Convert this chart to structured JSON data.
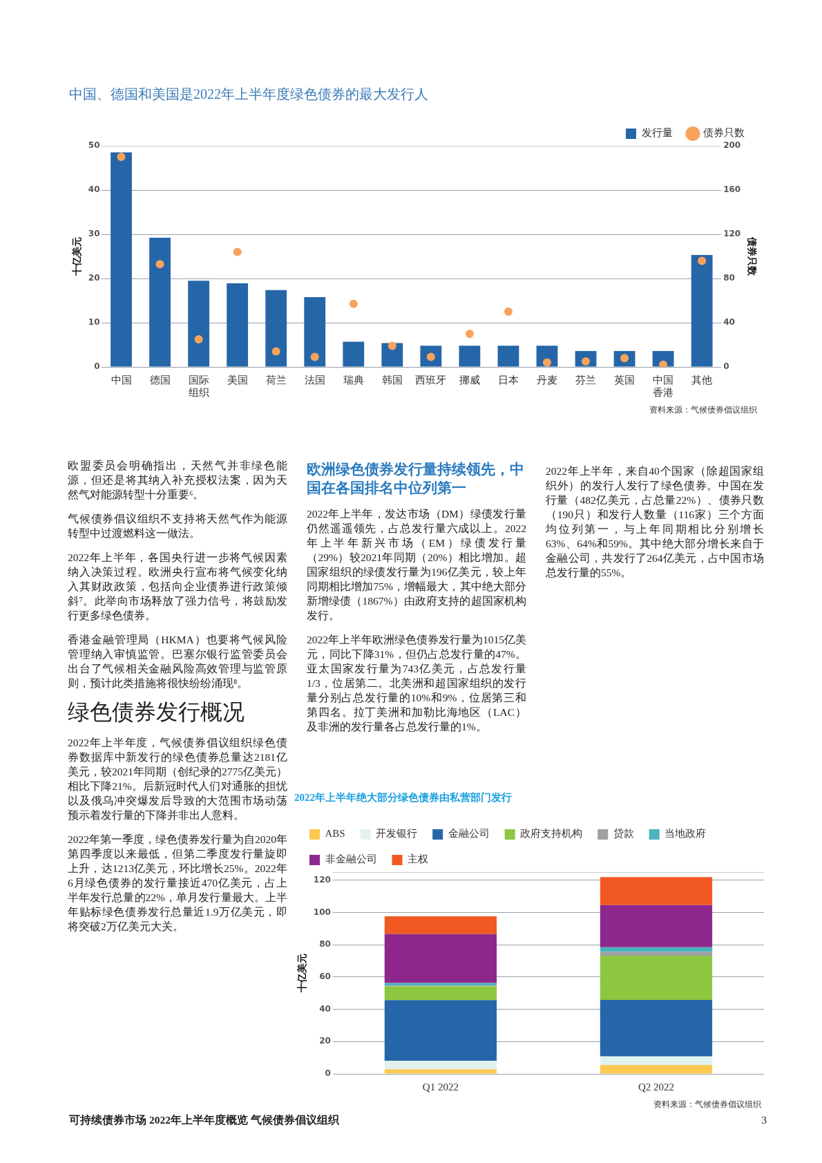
{
  "chart_data": [
    {
      "type": "bar",
      "title": "中国、德国和美国是2022年上半年度绿色债券的最大发行人",
      "ylabel": "十亿美元",
      "y2label": "债券只数",
      "categories": [
        "中国",
        "德国",
        "国际组织",
        "美国",
        "荷兰",
        "法国",
        "瑞典",
        "韩国",
        "西班牙",
        "挪威",
        "日本",
        "丹麦",
        "芬兰",
        "英国",
        "中国香港",
        "其他"
      ],
      "series": [
        {
          "name": "发行量",
          "color": "#2566a8",
          "values": [
            48.5,
            29.2,
            19.5,
            18.9,
            17.4,
            15.8,
            5.7,
            5.4,
            4.8,
            4.8,
            4.8,
            4.8,
            3.6,
            3.6,
            3.6,
            25.3
          ]
        },
        {
          "type": "scatter",
          "axis": "y2",
          "name": "债券只数",
          "color": "#f7a35c",
          "values": [
            190,
            93,
            25,
            104,
            14,
            9,
            57,
            19,
            9,
            30,
            50,
            4,
            5,
            8,
            2,
            96
          ]
        }
      ],
      "ylim": [
        0,
        50
      ],
      "yticks": [
        0,
        10,
        20,
        30,
        40,
        50
      ],
      "y2lim": [
        0,
        200
      ],
      "y2ticks": [
        0,
        40,
        80,
        120,
        160,
        200
      ],
      "grid": "y",
      "legend": "top right",
      "marker": "circle",
      "annotations": [
        "资料来源：气候债券倡议组织"
      ]
    },
    {
      "type": "other",
      "annotations": [
        "欧盟委员会明确指出，天然气并非绿色能源，但还是将其纳入补充授权法案，因为天然气对能源转型十分重要⁶。",
        "气候债券倡议组织不支持将天然气作为能源转型中过渡燃料这一做法。",
        "2022年上半年，各国央行进一步将气候因素纳入决策过程。欧洲央行宣布将气候变化纳入其财政政策，包括向企业债券进行政策倾斜⁷。此举向市场释放了强力信号，将鼓励发行更多绿色债券。",
        "香港金融管理局（HKMA）也要将气候风险管理纳入审慎监管。巴塞尔银行监管委员会出台了气候相关金融风险高效管理与监管原则，预计此类措施将很快纷纷涌现⁸。"
      ]
    },
    {
      "type": "other",
      "title": "绿色债券发行概况",
      "annotations": [
        "2022年上半年度，气候债券倡议组织绿色债券数据库中新发行的绿色债券总量达2181亿美元，较2021年同期（创纪录的2775亿美元）相比下降21%。后新冠时代人们对通胀的担忧以及俄乌冲突爆发后导致的大范围市场动荡预示着发行量的下降并非出人意料。",
        "2022年第一季度，绿色债券发行量为自2020年第四季度以来最低，但第二季度发行量旋即上升，达1213亿美元，环比增长25%。2022年6月绿色债券的发行量接近470亿美元，占上半年发行总量的22%，单月发行量最大。上半年贴标绿色债券发行总量近1.9万亿美元，即将突破2万亿美元大关。"
      ]
    },
    {
      "type": "other",
      "title": "欧洲绿色债券发行量持续领先，中国在各国排名中位列第一",
      "annotations": [
        "2022年上半年，发达市场（DM）绿债发行量仍然遥遥领先，占总发行量六成以上。2022年上半年新兴市场（EM）绿债发行量（29%）较2021年同期（20%）相比增加。超国家组织的绿债发行量为196亿美元，较上年同期相比增加75%，增幅最大，其中绝大部分新增绿债（1867%）由政府支持的超国家机构发行。",
        "2022年上半年欧洲绿色债券发行量为1015亿美元，同比下降31%，但仍占总发行量的47%。亚太国家发行量为743亿美元，占总发行量1/3，位居第二。北美洲和超国家组织的发行量分别占总发行量的10%和9%，位居第三和第四名。拉丁美洲和加勒比海地区（LAC）及非洲的发行量各占总发行量的1%。"
      ]
    },
    {
      "type": "other",
      "annotations": [
        "2022年上半年，来自40个国家（除超国家组织外）的发行人发行了绿色债券。中国在发行量（482亿美元，占总量22%）、债券只数（190只）和发行人数量（116家）三个方面均位列第一，与上年同期相比分别增长63%、64%和59%。其中绝大部分增长来自于金融公司，共发行了264亿美元，占中国市场总发行量的55%。"
      ]
    },
    {
      "type": "bar",
      "stacked": true,
      "title": "2022年上半年绝大部分绿色债券由私营部门发行",
      "ylabel": "十亿美元",
      "categories": [
        "Q1 2022",
        "Q2 2022"
      ],
      "series": [
        {
          "name": "ABS",
          "color": "#fdc94e",
          "values": [
            2.8,
            5.5
          ]
        },
        {
          "name": "开发银行",
          "color": "#e2f2ef",
          "values": [
            5.3,
            5.3
          ]
        },
        {
          "name": "金融公司",
          "color": "#2566a8",
          "values": [
            37.6,
            35
          ]
        },
        {
          "name": "政府支持机构",
          "color": "#8dc63f",
          "values": [
            8.5,
            27.4
          ]
        },
        {
          "name": "贷款",
          "color": "#a0a0a0",
          "values": [
            0.5,
            2.4
          ]
        },
        {
          "name": "当地政府",
          "color": "#4bb3bd",
          "values": [
            1.6,
            2.8
          ]
        },
        {
          "name": "非金融公司",
          "color": "#8e278c",
          "values": [
            30.3,
            26.2
          ]
        },
        {
          "name": "主权",
          "color": "#f05a22",
          "values": [
            11,
            17.3
          ]
        }
      ],
      "ylim": [
        0,
        125
      ],
      "yticks": [
        0,
        20,
        40,
        60,
        80,
        100,
        120
      ],
      "grid": "y",
      "legend": "top left",
      "annotations": [
        "资料来源：气候债券倡议组织"
      ]
    },
    {
      "type": "other",
      "annotations": [
        "可持续债券市场 2022年上半年度概览 气候债券倡议组织",
        "3"
      ]
    }
  ]
}
